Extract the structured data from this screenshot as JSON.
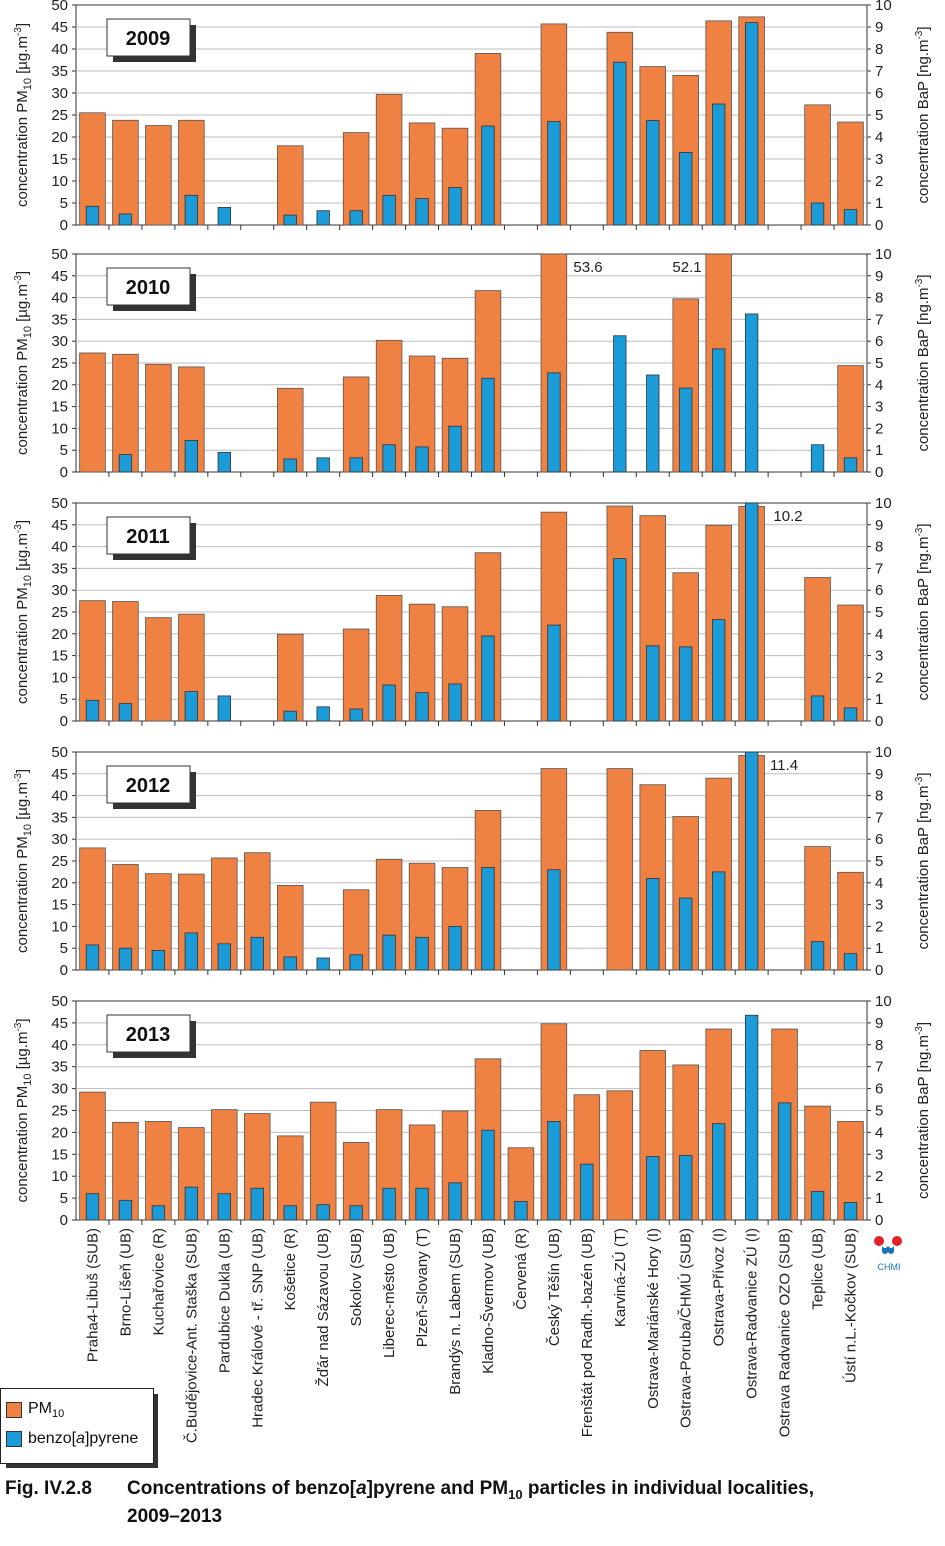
{
  "chart_data": {
    "type": "bar",
    "categories": [
      "Praha4-Libuš (SUB)",
      "Brno-Líšeň (UB)",
      "Kuchařovice (R)",
      "Č.Budějovice-Ant. Staška (SUB)",
      "Pardubice Dukla (UB)",
      "Hradec Králové - tř. SNP (UB)",
      "Košetice (R)",
      "Žďár nad Sázavou (UB)",
      "Sokolov (SUB)",
      "Liberec-město (UB)",
      "Plzeň-Slovany (T)",
      "Brandýs n. Labem (SUB)",
      "Kladno-Švermov (UB)",
      "Červená (R)",
      "Český Těšín (UB)",
      "Frenštát pod Radh.-bazén (UB)",
      "Karviná-ZÚ (T)",
      "Ostrava-Mariánské Hory (I)",
      "Ostrava-Poruba/ČHMÚ (SUB)",
      "Ostrava-Přívoz (I)",
      "Ostrava-Radvanice ZÚ (I)",
      "Ostrava Radvanice OZO (SUB)",
      "Teplice  (UB)",
      "Ústí n.L.-Kočkov (SUB)"
    ],
    "series_names": [
      "PM",
      "benzo[",
      "a",
      "]pyrene"
    ],
    "legend_sub": "10",
    "y_left_label": "concentration PM",
    "y_left_sub": "10",
    "y_left_unit": " [µg.m",
    "y_left_exp": "-3",
    "y_left_close": "]",
    "y_right_label": "concentration BaP [ng.m",
    "y_right_exp": "-3",
    "y_right_close": "]",
    "y_left_ticks": [
      "0",
      "5",
      "10",
      "15",
      "20",
      "25",
      "30",
      "35",
      "40",
      "45",
      "50"
    ],
    "y_right_ticks": [
      "0",
      "1",
      "2",
      "3",
      "4",
      "5",
      "6",
      "7",
      "8",
      "9",
      "10"
    ],
    "ylim_left": [
      0,
      50
    ],
    "ylim_right": [
      0,
      10
    ],
    "panels": [
      {
        "year": "2009",
        "pm10": [
          25.5,
          23.8,
          22.6,
          23.8,
          null,
          null,
          18,
          null,
          21,
          29.7,
          23.2,
          22,
          39,
          null,
          45.7,
          null,
          43.8,
          36,
          34,
          46.4,
          47.3,
          null,
          27.3,
          23.4
        ],
        "bap": [
          0.85,
          0.5,
          null,
          1.35,
          0.8,
          null,
          0.45,
          0.65,
          0.65,
          1.35,
          1.2,
          1.7,
          4.5,
          null,
          4.7,
          null,
          7.4,
          4.75,
          3.3,
          5.5,
          9.2,
          null,
          1.0,
          0.7
        ],
        "annotations": []
      },
      {
        "year": "2010",
        "pm10": [
          27.3,
          27,
          24.7,
          24.1,
          null,
          null,
          19.2,
          null,
          21.8,
          30.2,
          26.6,
          26.1,
          41.6,
          null,
          53.6,
          null,
          null,
          null,
          39.7,
          52.1,
          null,
          null,
          null,
          24.4
        ],
        "bap": [
          null,
          0.8,
          null,
          1.45,
          0.9,
          null,
          0.6,
          0.65,
          0.65,
          1.25,
          1.15,
          2.1,
          4.3,
          null,
          4.55,
          null,
          6.25,
          4.45,
          3.85,
          5.65,
          7.25,
          null,
          1.25,
          0.65
        ],
        "annotations": [
          "53.6",
          "52.1"
        ]
      },
      {
        "year": "2011",
        "pm10": [
          27.6,
          27.4,
          23.7,
          24.5,
          null,
          null,
          19.9,
          null,
          21.1,
          28.8,
          26.8,
          26.2,
          38.6,
          null,
          47.9,
          null,
          49.3,
          47.1,
          34,
          44.9,
          49.2,
          null,
          32.9,
          26.6
        ],
        "bap": [
          0.95,
          0.8,
          null,
          1.35,
          1.15,
          null,
          0.45,
          0.65,
          0.55,
          1.65,
          1.3,
          1.7,
          3.9,
          null,
          4.4,
          null,
          7.45,
          3.45,
          3.4,
          4.65,
          10.2,
          null,
          1.15,
          0.6
        ],
        "annotations": [
          "10.2"
        ]
      },
      {
        "year": "2012",
        "pm10": [
          28,
          24.2,
          22.1,
          22,
          25.7,
          26.9,
          19.4,
          null,
          18.4,
          25.4,
          24.5,
          23.5,
          36.6,
          null,
          46.2,
          null,
          46.2,
          42.5,
          35.2,
          44,
          49.2,
          null,
          28.3,
          22.4
        ],
        "bap": [
          1.15,
          1.0,
          0.9,
          1.7,
          1.2,
          1.5,
          0.6,
          0.55,
          0.7,
          1.6,
          1.5,
          2.0,
          4.7,
          null,
          4.6,
          null,
          null,
          4.2,
          3.3,
          4.5,
          11.4,
          null,
          1.3,
          0.75
        ],
        "annotations": [
          "11.4"
        ]
      },
      {
        "year": "2013",
        "pm10": [
          29.2,
          22.3,
          22.5,
          21.1,
          25.2,
          24.3,
          19.2,
          26.9,
          17.7,
          25.2,
          21.7,
          24.9,
          36.8,
          16.5,
          44.8,
          28.6,
          29.5,
          38.7,
          35.4,
          43.6,
          null,
          43.6,
          26,
          22.5
        ],
        "bap": [
          1.2,
          0.9,
          0.65,
          1.5,
          1.2,
          1.45,
          0.65,
          0.7,
          0.65,
          1.45,
          1.45,
          1.7,
          4.1,
          0.85,
          4.5,
          2.55,
          null,
          2.9,
          2.95,
          4.4,
          9.35,
          5.35,
          1.3,
          0.8
        ],
        "annotations": []
      }
    ]
  },
  "colors": {
    "pm10": "#ef8242",
    "bap": "#1b9bd7",
    "logo_red": "#e8202a",
    "logo_blue": "#1a74b8"
  },
  "logo": "CHMI",
  "caption": {
    "number": "Fig. IV.2.8",
    "text_a": "Concentrations of benzo[",
    "text_b": "a",
    "text_c": "]pyrene and PM",
    "text_sub": "10",
    "text_d": " particles in individual localities,",
    "line2": "2009–2013"
  }
}
